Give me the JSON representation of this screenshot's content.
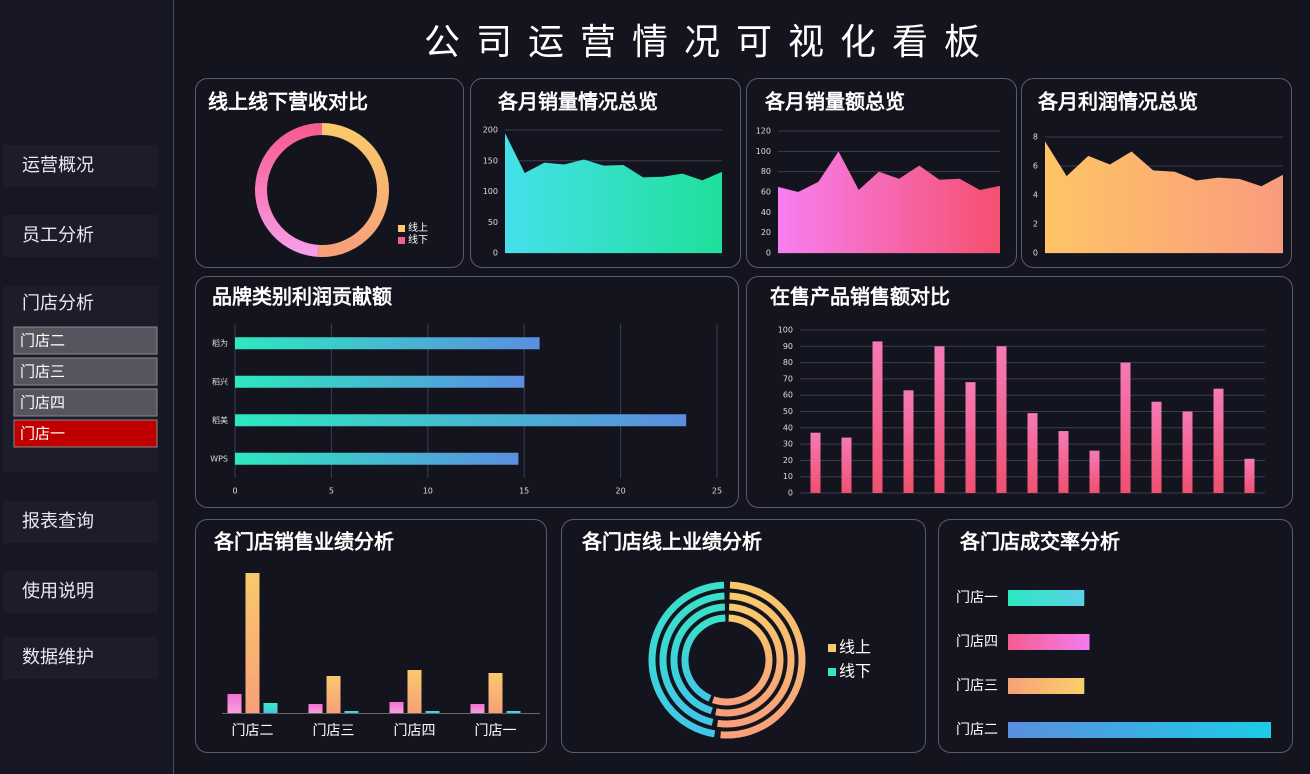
{
  "title": "公司运营情况可视化看板",
  "nav": {
    "items": [
      "运营概况",
      "员工分析",
      "门店分析",
      "报表查询",
      "使用说明",
      "数据维护"
    ],
    "submenu": [
      "门店二",
      "门店三",
      "门店四",
      "门店一"
    ],
    "active_submenu": 3
  },
  "chart_data": [
    {
      "type": "donut",
      "title": "线上线下营收对比",
      "categories": [
        "线上",
        "线下"
      ],
      "values": [
        51,
        49
      ],
      "colors": [
        [
          "#f9c96b",
          "#f7a07a"
        ],
        [
          "#f75c8f",
          "#f79ce8"
        ]
      ]
    },
    {
      "type": "area",
      "title": "各月销量情况总览",
      "values": [
        195,
        130,
        147,
        144,
        152,
        142,
        143,
        123,
        124,
        129,
        118,
        132
      ],
      "color": [
        "#45e0ea",
        "#1fe09a"
      ],
      "ylim": [
        0,
        200
      ],
      "yticks": [
        0,
        50,
        100,
        150,
        200
      ],
      "grid": true
    },
    {
      "type": "area",
      "title": "各月销量额总览",
      "values": [
        65,
        60,
        70,
        100,
        62,
        80,
        73,
        86,
        72,
        73,
        62,
        66
      ],
      "color": [
        "#f77ff0",
        "#f5506e"
      ],
      "ylim": [
        0,
        120
      ],
      "yticks": [
        0,
        20,
        40,
        60,
        80,
        100,
        120
      ],
      "grid": true
    },
    {
      "type": "area",
      "title": "各月利润情况总览",
      "values": [
        7.7,
        5.3,
        6.7,
        6.1,
        7.0,
        5.7,
        5.6,
        5.0,
        5.2,
        5.1,
        4.6,
        5.4
      ],
      "color": [
        "#ffc466",
        "#f99b7d"
      ],
      "ylim": [
        0,
        8
      ],
      "yticks": [
        0,
        2,
        4,
        6,
        8
      ],
      "grid": true
    },
    {
      "type": "hbar",
      "title": "品牌类别利润贡献额",
      "categories": [
        "稻为",
        "稻兴",
        "稻美",
        "WPS"
      ],
      "values": [
        15.8,
        15.0,
        23.4,
        14.7
      ],
      "color": [
        "#2ee8c0",
        "#5b8ee0"
      ],
      "xlim": [
        0,
        25
      ],
      "xticks": [
        0,
        5,
        10,
        15,
        20,
        25
      ],
      "grid": true
    },
    {
      "type": "bar",
      "title": "在售产品销售额对比",
      "values": [
        37,
        34,
        93,
        63,
        90,
        68,
        90,
        49,
        38,
        26,
        80,
        56,
        50,
        64,
        21
      ],
      "color": [
        "#f57ab8",
        "#f0506e"
      ],
      "ylim": [
        0,
        100
      ],
      "yticks": [
        0,
        10,
        20,
        30,
        40,
        50,
        60,
        70,
        80,
        90,
        100
      ],
      "grid": true
    },
    {
      "type": "grouped",
      "title": "各门店销售业绩分析",
      "categories": [
        "门店二",
        "门店三",
        "门店四",
        "门店一"
      ],
      "series": [
        {
          "color": [
            "#f472d0",
            "#f7a0e0"
          ],
          "values": [
            19,
            9,
            11,
            9
          ]
        },
        {
          "color": [
            "#f9c96b",
            "#f7a07a"
          ],
          "values": [
            140,
            37,
            43,
            40
          ]
        },
        {
          "color": [
            "#3ee7d0",
            "#41c7e8"
          ],
          "values": [
            10,
            2,
            2,
            2
          ]
        }
      ]
    },
    {
      "type": "rings",
      "title": "各门店线上业绩分析",
      "series": [
        {
          "name": "线上",
          "color": [
            "#f9c96b",
            "#f7a07a"
          ],
          "values": [
            52,
            53,
            54,
            56
          ]
        },
        {
          "name": "线下",
          "color": [
            "#3ae0c8",
            "#41c7e8"
          ],
          "values": [
            48,
            47,
            46,
            44
          ]
        }
      ]
    },
    {
      "type": "hbar-colored",
      "title": "各门店成交率分析",
      "categories": [
        "门店一",
        "门店四",
        "门店三",
        "门店二"
      ],
      "values": [
        29,
        31,
        29,
        100
      ],
      "colors": [
        [
          "#2ee8c0",
          "#5ccfe8"
        ],
        [
          "#f75c8f",
          "#f07ef0"
        ],
        [
          "#f7a07a",
          "#f9d06b"
        ],
        [
          "#5b8ee0",
          "#1ccce8"
        ]
      ]
    }
  ]
}
